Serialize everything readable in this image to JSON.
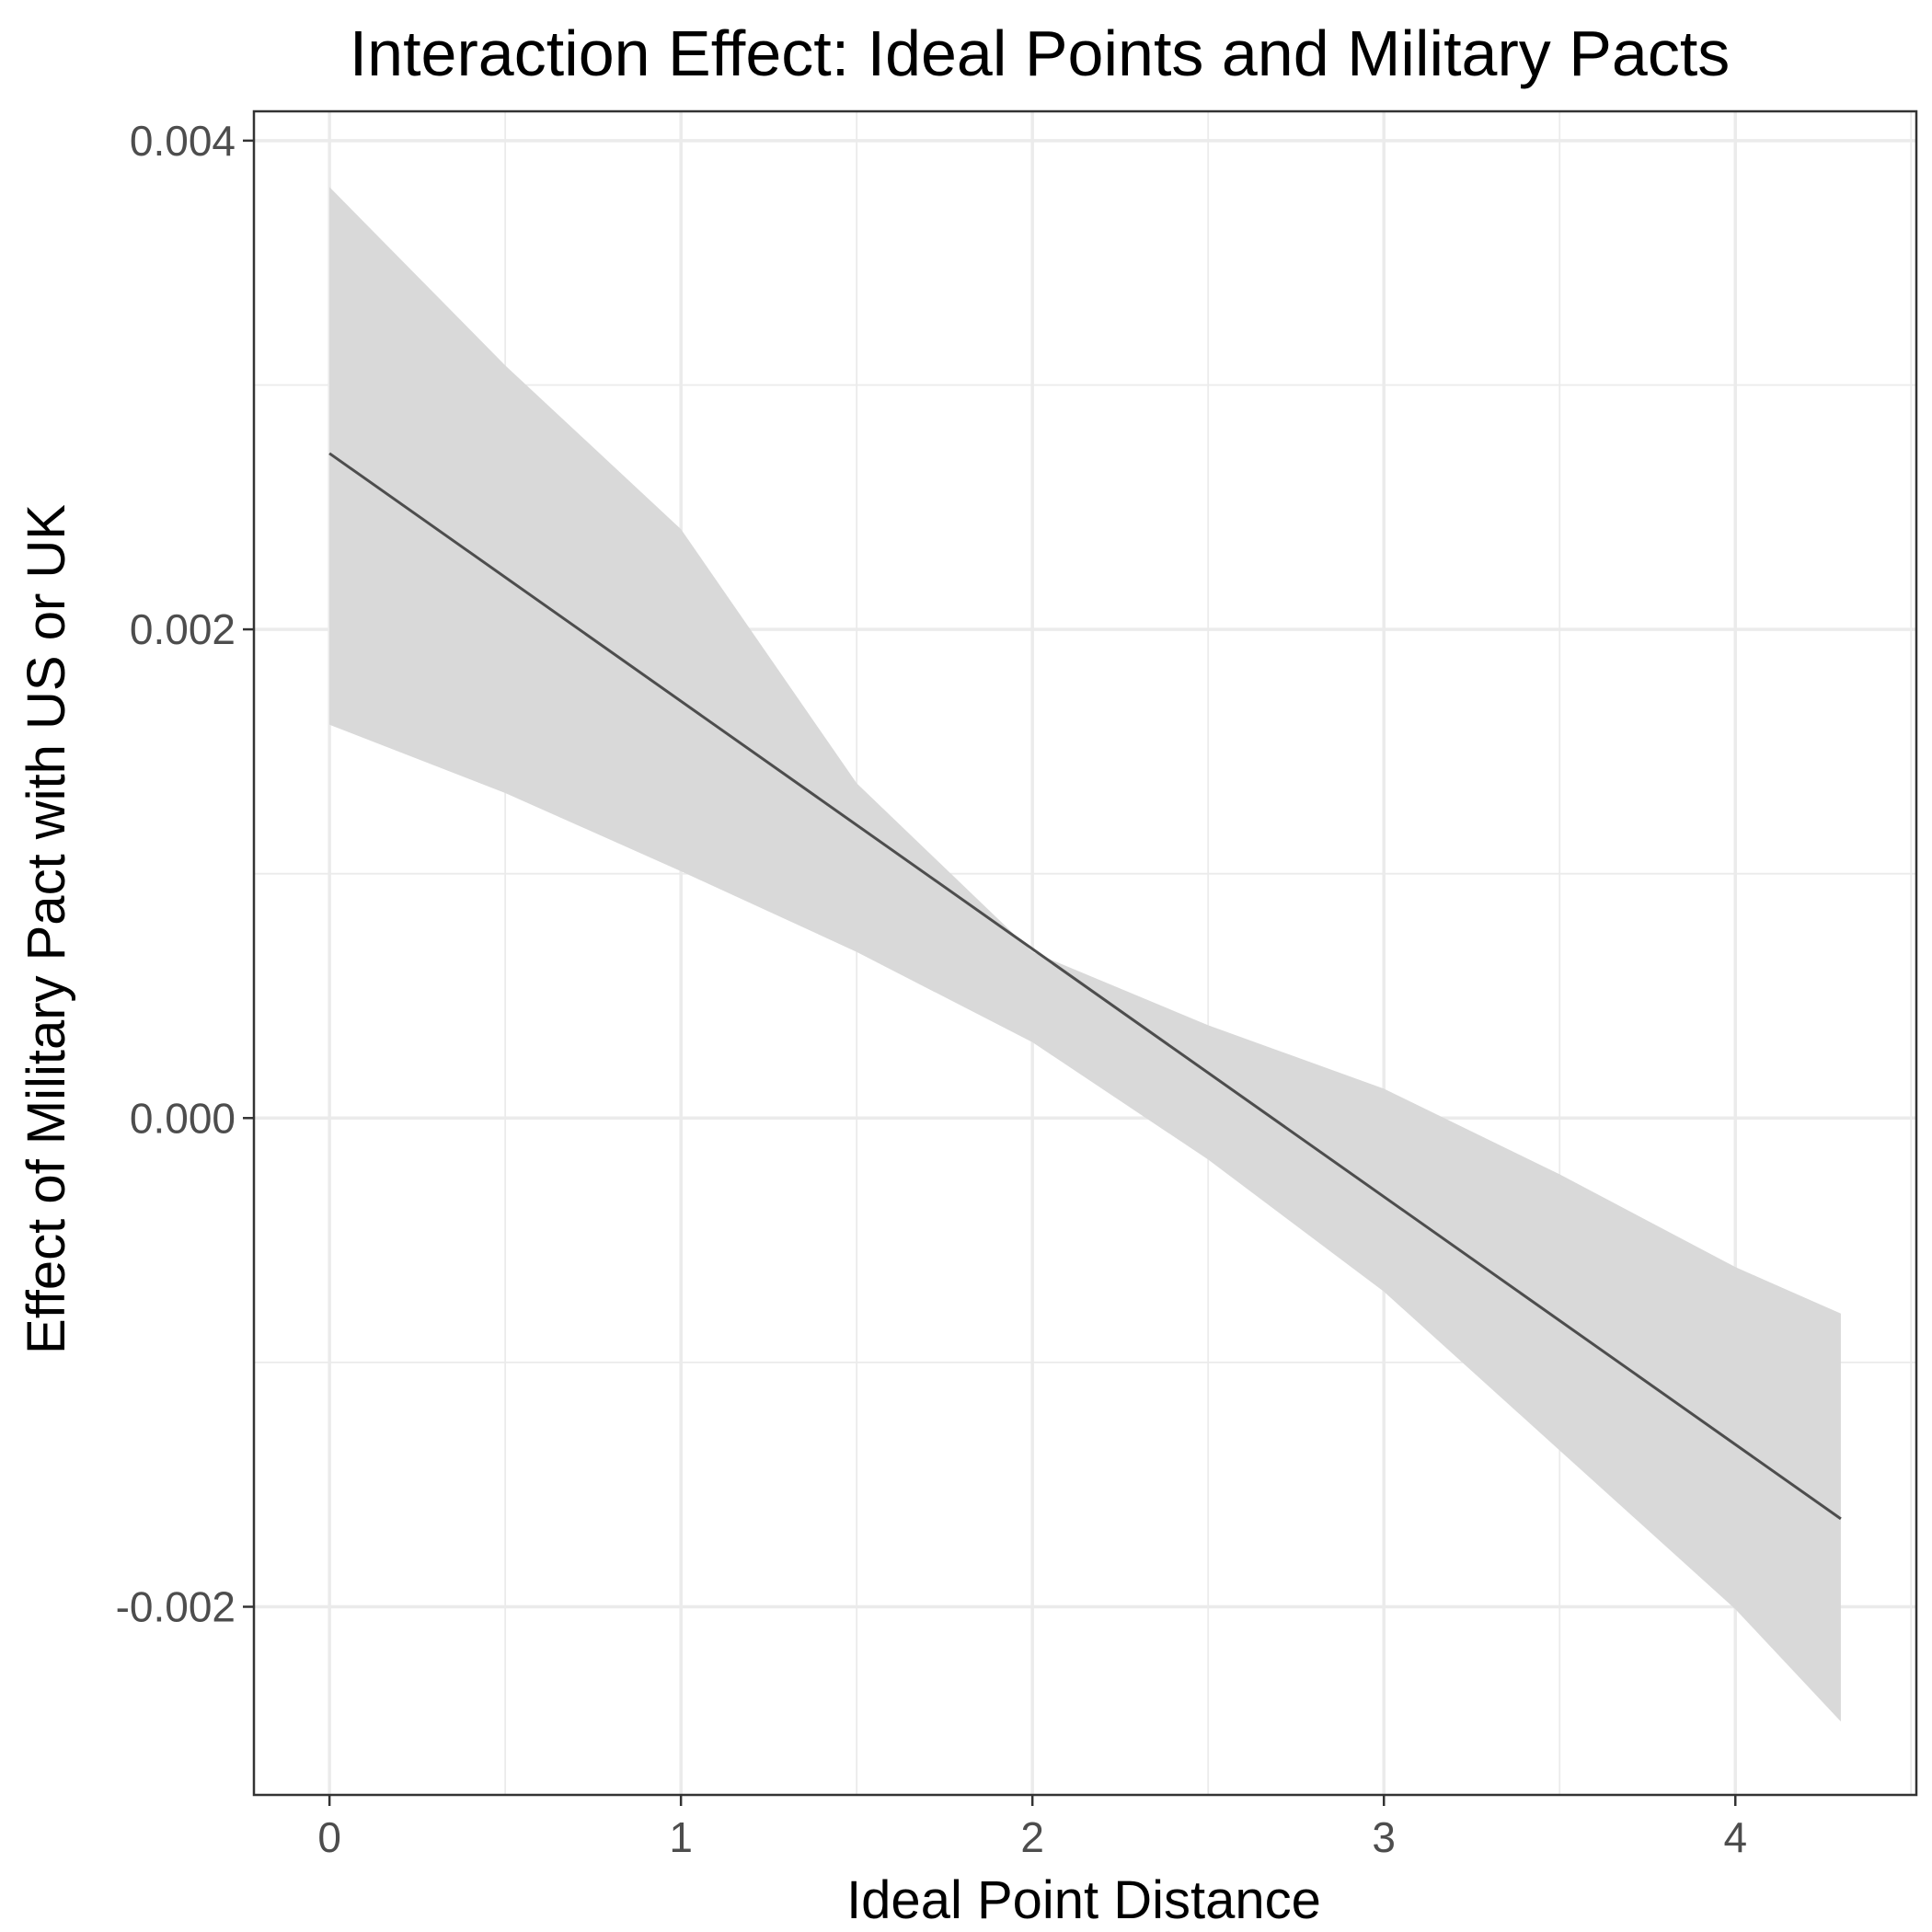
{
  "chart_data": {
    "type": "line",
    "title": "Interaction Effect: Ideal Points and Military Pacts",
    "xlabel": "Ideal Point Distance",
    "ylabel": "Effect of Military Pact with US or UK",
    "xlim": [
      -0.215,
      4.515
    ],
    "ylim": [
      -0.00277,
      0.00412
    ],
    "x_ticks": [
      0,
      1,
      2,
      3,
      4
    ],
    "x_tick_labels": [
      "0",
      "1",
      "2",
      "3",
      "4"
    ],
    "y_ticks": [
      -0.002,
      0.0,
      0.002,
      0.004
    ],
    "y_tick_labels": [
      "-0.002",
      "0.000",
      "0.002",
      "0.004"
    ],
    "grid": true,
    "legend": "none",
    "series": [
      {
        "x": [
          0,
          4.3
        ],
        "values": [
          0.00272,
          -0.00164
        ]
      }
    ],
    "ribbon": {
      "x": [
        0,
        0.5,
        1,
        1.5,
        2,
        2.5,
        3,
        3.5,
        4,
        4.3
      ],
      "lower": [
        0.00161,
        0.00133,
        0.00101,
        0.00068,
        0.00031,
        -0.00017,
        -0.00071,
        -0.00136,
        -0.00201,
        -0.00247
      ],
      "upper": [
        0.00381,
        0.00308,
        0.00241,
        0.00137,
        0.00068,
        0.00038,
        0.00012,
        -0.00023,
        -0.00061,
        -0.0008
      ]
    },
    "colors": {
      "line": "#4d4d4d",
      "ribbon": "#d9d9d9",
      "grid": "#ebebeb",
      "border": "#333333",
      "tick_text": "#4d4d4d"
    }
  }
}
